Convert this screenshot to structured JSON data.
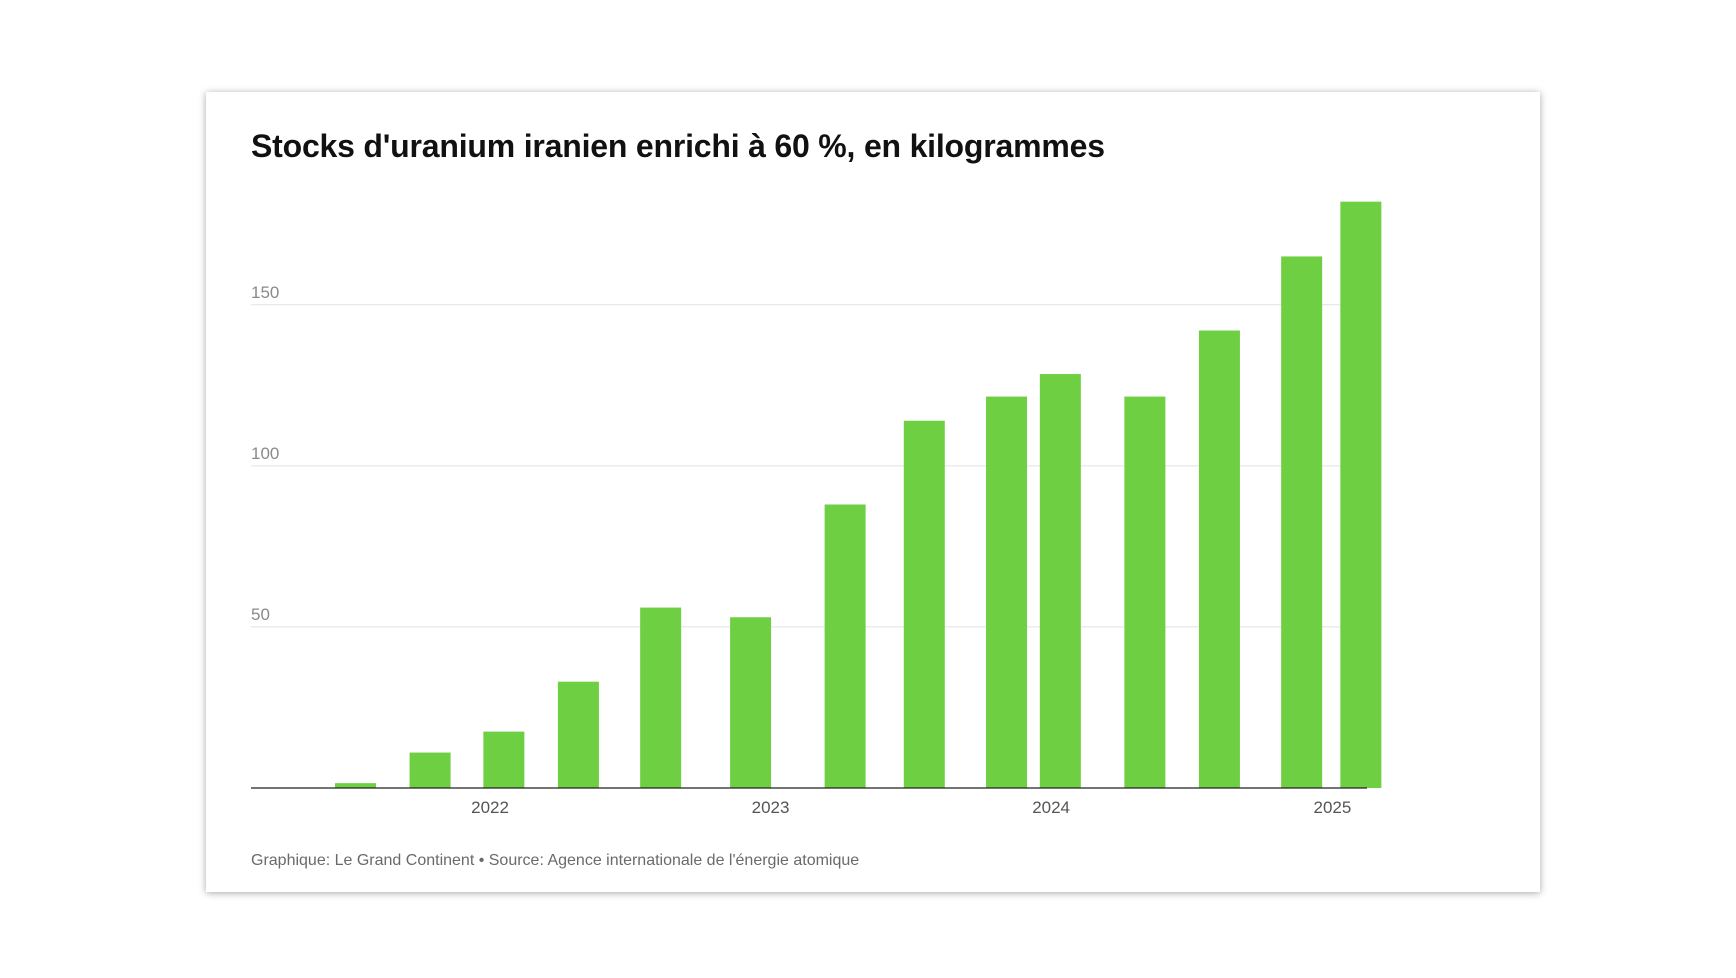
{
  "card": {
    "title": "Stocks d'uranium iranien enrichi à 60 %, en kilogrammes",
    "footer": "Graphique: Le Grand Continent • Source: Agence internationale de l'énergie atomique"
  },
  "colors": {
    "bar": "#6ecf42",
    "grid": "#e2e2e2",
    "baseline": "#222222"
  },
  "chart_data": {
    "type": "bar",
    "title": "Stocks d'uranium iranien enrichi à 60 %, en kilogrammes",
    "xlabel": "",
    "ylabel": "",
    "x_axis": "date",
    "xlim": [
      "2021-02-24",
      "2025-02-15"
    ],
    "ylim": [
      0,
      185
    ],
    "yticks": [
      50,
      100,
      150
    ],
    "xticks": [
      {
        "label": "2022",
        "date": "2022-01-01"
      },
      {
        "label": "2023",
        "date": "2023-01-01"
      },
      {
        "label": "2024",
        "date": "2024-01-01"
      },
      {
        "label": "2025",
        "date": "2025-01-01"
      }
    ],
    "grid": true,
    "legend": "none",
    "x": [
      "2021-07-10",
      "2021-10-15",
      "2022-01-19",
      "2022-04-26",
      "2022-08-11",
      "2022-12-06",
      "2023-04-08",
      "2023-07-20",
      "2023-11-04",
      "2024-01-13",
      "2024-05-02",
      "2024-08-07",
      "2024-11-22",
      "2025-02-07"
    ],
    "values": [
      1.5,
      11,
      17.5,
      33,
      56,
      53,
      88,
      114,
      121.5,
      128.5,
      121.5,
      142,
      165,
      182
    ]
  }
}
